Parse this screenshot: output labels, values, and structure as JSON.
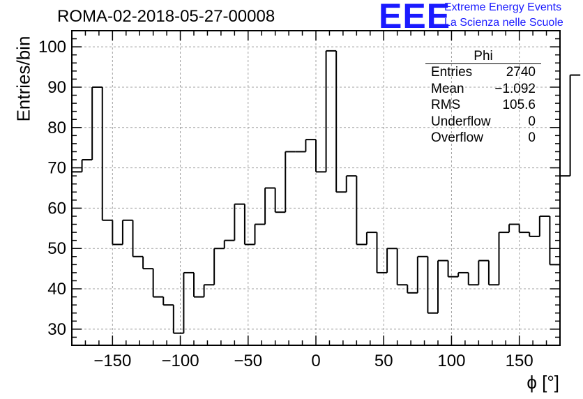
{
  "header": {
    "title": "ROMA-02-2018-05-27-00008",
    "logo_text": "EEE",
    "logo_line1": "Extreme Energy Events",
    "logo_line2": "La Scienza nelle Scuole"
  },
  "stats": {
    "title": "Phi",
    "rows": [
      {
        "label": "Entries",
        "value": "2740"
      },
      {
        "label": "Mean",
        "value": "−1.092"
      },
      {
        "label": "RMS",
        "value": "105.6"
      },
      {
        "label": "Underflow",
        "value": "0"
      },
      {
        "label": "Overflow",
        "value": "0"
      }
    ]
  },
  "chart_data": {
    "type": "bar",
    "histogram": true,
    "title": "ROMA-02-2018-05-27-00008",
    "xlabel": "ϕ [°]",
    "ylabel": "Entries/bin",
    "xlim": [
      -180,
      180
    ],
    "ylim": [
      26,
      104
    ],
    "bin_width": 7.5,
    "x_ticks": [
      -150,
      -100,
      -50,
      0,
      50,
      100,
      150
    ],
    "x_tick_labels": [
      "−150",
      "−100",
      "−50",
      "0",
      "50",
      "100",
      "150"
    ],
    "y_ticks": [
      30,
      40,
      50,
      60,
      70,
      80,
      90,
      100
    ],
    "y_tick_labels": [
      "30",
      "40",
      "50",
      "60",
      "70",
      "80",
      "90",
      "100"
    ],
    "grid": true,
    "series": [
      {
        "name": "Phi",
        "bin_edges_start": -180,
        "values": [
          69,
          72,
          90,
          57,
          51,
          57,
          48,
          45,
          38,
          36,
          29,
          44,
          38,
          41,
          50,
          52,
          61,
          51,
          56,
          65,
          59,
          74,
          74,
          77,
          69,
          99,
          64,
          68,
          51,
          54,
          44,
          50,
          41,
          39,
          48,
          34,
          47,
          43,
          44,
          41,
          47,
          41,
          54,
          56,
          54,
          53,
          58,
          46,
          68,
          93
        ]
      }
    ]
  }
}
